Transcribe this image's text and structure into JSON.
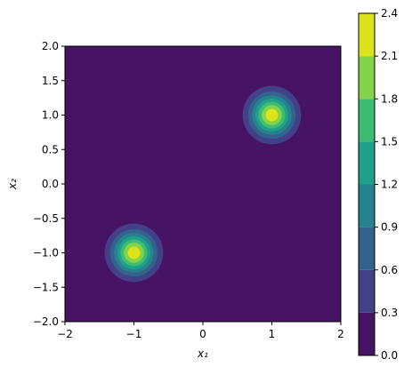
{
  "chart_data": {
    "type": "contour",
    "xlabel": "x₁",
    "ylabel": "x₂",
    "xlim": [
      -2,
      2
    ],
    "ylim": [
      -2,
      2
    ],
    "xticks": [
      {
        "value": -2,
        "label": "−2"
      },
      {
        "value": -1,
        "label": "−1"
      },
      0,
      1,
      2
    ],
    "yticks": [
      {
        "value": -2,
        "label": "−2.0"
      },
      {
        "value": -1.5,
        "label": "−1.5"
      },
      {
        "value": -1,
        "label": "−1.0"
      },
      {
        "value": -0.5,
        "label": "−0.5"
      },
      {
        "value": 0,
        "label": "0.0"
      },
      0.5,
      {
        "value": 1,
        "label": "1.0"
      },
      1.5,
      {
        "value": 2,
        "label": "2.0"
      }
    ],
    "levels": [
      {
        "value": 0,
        "label": "0.0"
      },
      0.3,
      0.6,
      0.9,
      1.2,
      1.5,
      1.8,
      2.1,
      2.4
    ],
    "colors": [
      "#471365",
      "#424086",
      "#33638d",
      "#26828e",
      "#1fa088",
      "#3fbc73",
      "#84d44b",
      "#dde318"
    ],
    "peaks": [
      {
        "x": 1,
        "y": 1,
        "amplitude": 2.3,
        "sigma": 0.21
      },
      {
        "x": -1,
        "y": -1,
        "amplitude": 2.3,
        "sigma": 0.21
      }
    ]
  }
}
